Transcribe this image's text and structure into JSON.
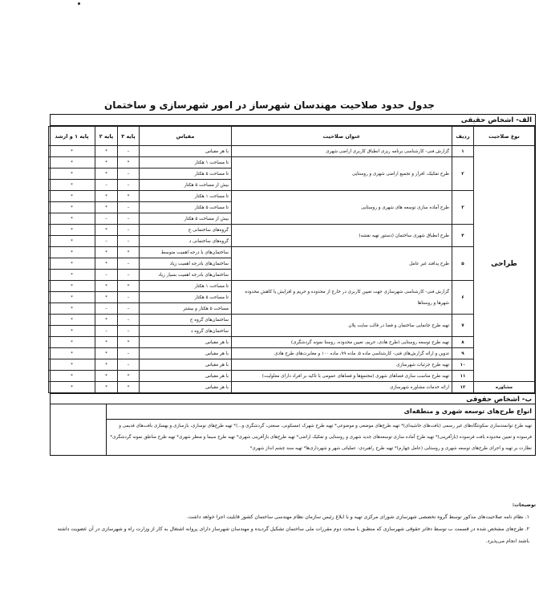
{
  "title": "جدول حدود صلاحیت مهندسان شهرساز در امور شهرسازی و ساختمان",
  "section_a": "الف- اشخاص حقیقی",
  "headers": {
    "type": "نوع صلاحیت",
    "row": "ردیف",
    "subject": "عنوان صلاحیت",
    "scale": "مقیاس",
    "p3": "پایه ۳",
    "p2": "پایه ۲",
    "p1": "پایه ۱ و ارشد"
  },
  "type_design": "طراحی",
  "type_consult": "مشاوره",
  "rows": [
    {
      "n": "۱",
      "title": "گزارش فنی- کارشناسی برنامه ریزی انطباق کاربری اراضی شهری",
      "subs": [
        [
          "با هر مقیاس",
          "–",
          "*",
          "*"
        ]
      ]
    },
    {
      "n": "۲",
      "title": "طرح تفکیک، افراز و تجمیع اراضی شهری و روستایی",
      "subs": [
        [
          "تا مساحت ۱ هکتار",
          "*",
          "*",
          "*"
        ],
        [
          "تا مساحت ۵ هکتار",
          "–",
          "*",
          "*"
        ],
        [
          "بیش از مساحت ۵ هکتار",
          "–",
          "–",
          "*"
        ]
      ]
    },
    {
      "n": "۳",
      "title": "طرح آماده سازی توسعه های شهری و روستایی",
      "subs": [
        [
          "تا مساحت ۱ هکتار",
          "*",
          "*",
          "*"
        ],
        [
          "تا مساحت ۵ هکتار",
          "–",
          "*",
          "*"
        ],
        [
          "بیش از مساحت ۵ هکتار",
          "–",
          "–",
          "*"
        ]
      ]
    },
    {
      "n": "۴",
      "title": "طرح انطباق شهری ساختمان (دستور تهیه نقشه)",
      "subs": [
        [
          "گروه‌های ساختمانی ج",
          "–",
          "*",
          "*"
        ],
        [
          "گروه‌های ساختمانی د",
          "–",
          "–",
          "*"
        ]
      ]
    },
    {
      "n": "۵",
      "title": "طرح پدافند غیر عامل",
      "subs": [
        [
          "ساختمان‌های با درجه اهمیت متوسط",
          "*",
          "*",
          "*"
        ],
        [
          "ساختمان‌های بادرجه اهمیت زیاد",
          "–",
          "*",
          "*"
        ],
        [
          "ساختمان‌های بادرجه اهمیت بسیار زیاد",
          "–",
          "–",
          "*"
        ]
      ]
    },
    {
      "n": "۶",
      "title": "گزارش فنی- کارشناسی شهرسازی جهت تعیین کاربری در خارج از محدوده و حریم و افزایش یا کاهش محدوده شهرها و روستاها",
      "subs": [
        [
          "تا مساحت ۱ هکتار",
          "*",
          "*",
          "*"
        ],
        [
          "تا مساحت ۵ هکتار",
          "–",
          "*",
          "*"
        ],
        [
          "مساحت ۵ هکتار و بیشتر",
          "–",
          "–",
          "*"
        ]
      ]
    },
    {
      "n": "۷",
      "title": "تهیه طرح جانمایی ساختمان و فضا در قالب سایت پلان",
      "subs": [
        [
          "ساختمان‌های گروه ج",
          "–",
          "*",
          "*"
        ],
        [
          "ساختمان‌های گروه د",
          "–",
          "–",
          "*"
        ]
      ]
    },
    {
      "n": "۸",
      "title": "تهیه طرح توسعه روستایی (طرح هادی، حریم، تعیین محدوده، روستا نمونه گردشگری)",
      "subs": [
        [
          "با هر مقیاس",
          "*",
          "*",
          "*"
        ]
      ]
    },
    {
      "n": "۹",
      "title": "تدوین و ارائه گزارش‌های فنی- کارشناسی ماده ۵، ماده ۹۹، ماده ۱۰۰ و مغایرت‌های طرح هادی",
      "subs": [
        [
          "با هر مقیاس",
          "–",
          "*",
          "*"
        ]
      ]
    },
    {
      "n": "۱۰",
      "title": "تهیه طرح جزئیات شهرسازی",
      "subs": [
        [
          "با هر مقیاس",
          "–",
          "*",
          "*"
        ]
      ]
    },
    {
      "n": "۱۱",
      "title": "تهیه طرح مناسب سازی فضاهای شهری (مجتمع‌ها و فضاهای عمومی با تاکید بر افراد دارای معلولیت)",
      "subs": [
        [
          "با هر مقیاس",
          "*",
          "*",
          "*"
        ]
      ]
    },
    {
      "n": "۱۲",
      "title": "ارائه خدمات مشاوره شهرسازی",
      "subs": [
        [
          "با هر مقیاس",
          "*",
          "*",
          "*"
        ]
      ]
    }
  ],
  "section_b": "ب- اشخاص حقوقی",
  "plans_title": "انواع طرح‌های توسعه شهری و منطقه‌ای",
  "plans_text": "تهیه طرح توانمندسازی سکونتگاه‌های غیر رسمی (بافت‌های حاشیه‌ای)* تهیه طرح‌های موضعی و موضوعی* تهیه طرح شهرک (مسکونی، صنعتی، گردشگری و...)* تهیه طرح‌های نوسازی، بازسازی و بهسازی بافت‌های قدیمی و فرسوده و تعیین محدوده بافت فرسوده (بازآفرینی)* تهیه طرح آماده سازی توسعه‌های جدید شهری و روستایی و تفکیک اراضی* تهیه طرح‌های بازآفرینی شهری* تهیه طرح سیما و منظر شهری* تهیه طرح مناطق نمونه گردشگری* نظارت بر تهیه و اجرای طرح‌های توسعه شهری و روستایی (عامل چهارم)* تهیه طرح راهبردی- عملیاتی شهر و شهرداری‌ها* تهیه سند چشم انداز شهری*",
  "notes_title": "توضیحات:",
  "notes": [
    "۱. نظام نامه صلاحیت‌های مذکور توسط گروه تخصصی شهرسازی شورای مرکزی تهیه و با ابلاغ رئیس سازمان نظام مهندسی ساختمان کشور قابلیت اجرا خواهد داشت.",
    "۲. طرح‌های مشخص شده در قسمت ب توسط دفاتر حقوقی شهرسازی که منطبق با مبحث دوم مقررات ملی ساختمان تشکیل گردیده و مهندسان شهرساز دارای پروانه اشتغال به کار از وزارت راه و شهرسازی در آن عضویت داشته باشند انجام می‌پذیرد."
  ]
}
